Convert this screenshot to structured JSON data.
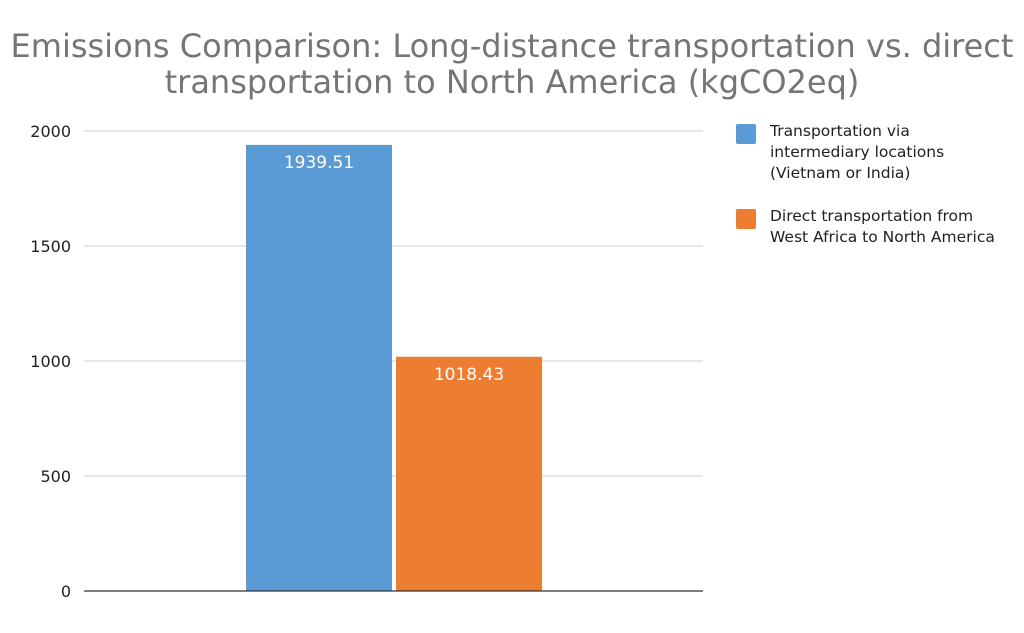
{
  "chart_data": {
    "type": "bar",
    "title_lines": [
      "Emissions Comparison: Long-distance transportation vs. direct",
      "transportation to North America (kgCO2eq)"
    ],
    "xlabel": "",
    "ylabel": "",
    "ylim": [
      0,
      2000
    ],
    "yticks": [
      0,
      500,
      1000,
      1500,
      2000
    ],
    "grid": true,
    "legend_position": "right",
    "series": [
      {
        "name": "Transportation via intermediary locations (Vietnam or India)",
        "value": 1939.51,
        "label": "1939.51",
        "color": "#5b9bd5"
      },
      {
        "name": "Direct transportation from West Africa to North America",
        "value": 1018.43,
        "label": "1018.43",
        "color": "#ed7d31"
      }
    ]
  }
}
